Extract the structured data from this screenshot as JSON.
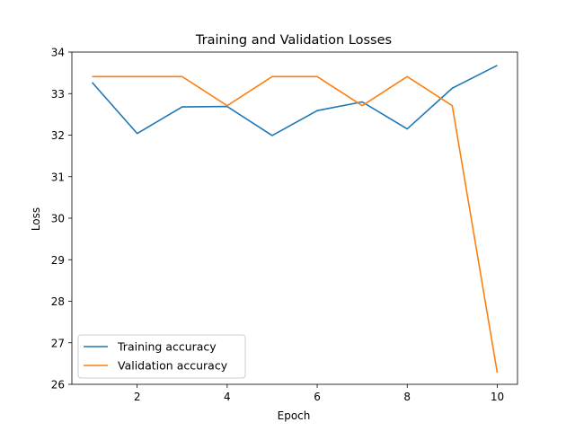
{
  "chart_data": {
    "type": "line",
    "title": "Training and Validation Losses",
    "xlabel": "Epoch",
    "ylabel": "Loss",
    "x": [
      1,
      2,
      3,
      4,
      5,
      6,
      7,
      8,
      9,
      10
    ],
    "xlim": [
      0.55,
      10.45
    ],
    "ylim": [
      26.0,
      34.0
    ],
    "xticks": [
      2,
      4,
      6,
      8,
      10
    ],
    "yticks": [
      26,
      27,
      28,
      29,
      30,
      31,
      32,
      33,
      34
    ],
    "grid": false,
    "legend_position": "lower-left",
    "series": [
      {
        "name": "Training accuracy",
        "color": "#1f77b4",
        "values": [
          33.27,
          32.04,
          32.68,
          32.69,
          31.99,
          32.59,
          32.8,
          32.15,
          33.13,
          33.68
        ]
      },
      {
        "name": "Validation accuracy",
        "color": "#ff7f0e",
        "values": [
          33.41,
          33.41,
          33.41,
          32.71,
          33.41,
          33.41,
          32.71,
          33.41,
          32.71,
          26.28
        ]
      }
    ]
  }
}
